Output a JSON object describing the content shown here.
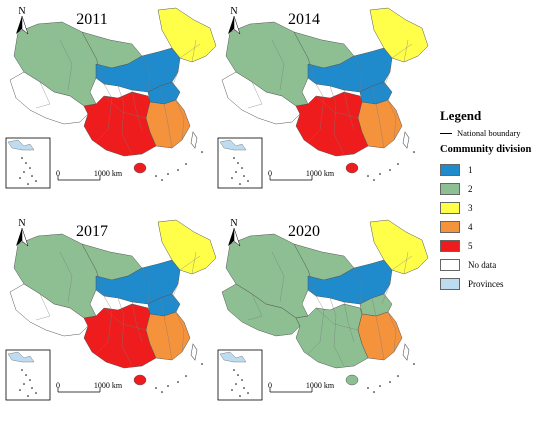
{
  "maps": [
    {
      "year": "2011"
    },
    {
      "year": "2014"
    },
    {
      "year": "2017"
    },
    {
      "year": "2020"
    }
  ],
  "north_label": "N",
  "scale_labels": {
    "start": "0",
    "end": "1000 km"
  },
  "legend": {
    "title": "Legend",
    "boundary_label": "National boundary",
    "community_title": "Community division",
    "items": [
      {
        "label": "1",
        "color": "#1f8bcc"
      },
      {
        "label": "2",
        "color": "#8dbf92"
      },
      {
        "label": "3",
        "color": "#ffff4a"
      },
      {
        "label": "4",
        "color": "#f5923c"
      },
      {
        "label": "5",
        "color": "#ee1c1c"
      },
      {
        "label": "No data",
        "color": "#ffffff"
      },
      {
        "label": "Provinces",
        "color": "#bddcf1"
      }
    ]
  },
  "colors": {
    "c1": "#1f8bcc",
    "c2": "#8dbf92",
    "c3": "#ffff4a",
    "c4": "#f5923c",
    "c5": "#ee1c1c",
    "nodata": "#ffffff",
    "provinces": "#bddcf1"
  },
  "community_assignment": [
    {
      "year": "2011",
      "west": "c2",
      "tibet": "nodata",
      "north": "c1",
      "northeast": "c3",
      "central": "c1",
      "south": "c5",
      "east": "c4",
      "hainan": "c5"
    },
    {
      "year": "2014",
      "west": "c2",
      "tibet": "nodata",
      "north": "c1",
      "northeast": "c3",
      "central": "c1",
      "south": "c5",
      "east": "c4",
      "hainan": "c5"
    },
    {
      "year": "2017",
      "west": "c2",
      "tibet": "nodata",
      "north": "c1",
      "northeast": "c3",
      "central": "c1",
      "south": "c5",
      "east": "c4",
      "hainan": "c5"
    },
    {
      "year": "2020",
      "west": "c2",
      "tibet": "c2",
      "north": "c1",
      "northeast": "c3",
      "central": "c2",
      "south": "c2",
      "east": "c4",
      "hainan": "c2"
    }
  ]
}
